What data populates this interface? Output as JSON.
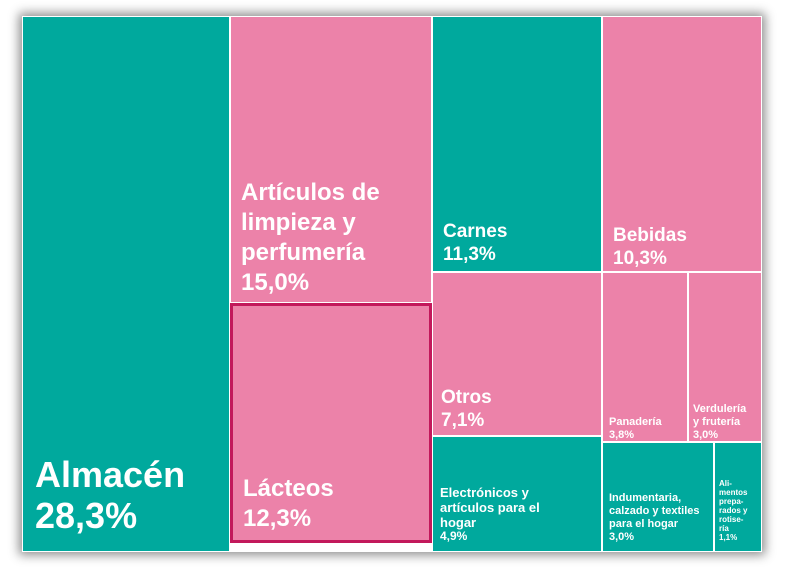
{
  "colors": {
    "teal": "#00a99d",
    "pink": "#ec82a9",
    "highlight_border": "#c2185b"
  },
  "chart_data": {
    "type": "treemap",
    "items": [
      {
        "label": "Almacén",
        "value": "28,3%",
        "num": 28.3,
        "color": "teal"
      },
      {
        "label": "Artículos de limpieza y perfumería",
        "value": "15,0%",
        "num": 15.0,
        "color": "pink"
      },
      {
        "label": "Lácteos",
        "value": "12,3%",
        "num": 12.3,
        "color": "pink",
        "highlight": true
      },
      {
        "label": "Carnes",
        "value": "11,3%",
        "num": 11.3,
        "color": "teal"
      },
      {
        "label": "Bebidas",
        "value": "10,3%",
        "num": 10.3,
        "color": "pink"
      },
      {
        "label": "Otros",
        "value": "7,1%",
        "num": 7.1,
        "color": "pink"
      },
      {
        "label": "Electrónicos y artículos para el hogar",
        "value": "4,9%",
        "num": 4.9,
        "color": "teal"
      },
      {
        "label": "Panadería",
        "value": "3,8%",
        "num": 3.8,
        "color": "pink"
      },
      {
        "label": "Verdulería y frutería",
        "value": "3,0%",
        "num": 3.0,
        "color": "pink"
      },
      {
        "label": "Indumentaria, calzado y textiles para el hogar",
        "value": "3,0%",
        "num": 3.0,
        "color": "teal"
      },
      {
        "label": "Alimentos preparados y rotisería",
        "value": "1,1%",
        "num": 1.1,
        "color": "teal"
      }
    ]
  }
}
